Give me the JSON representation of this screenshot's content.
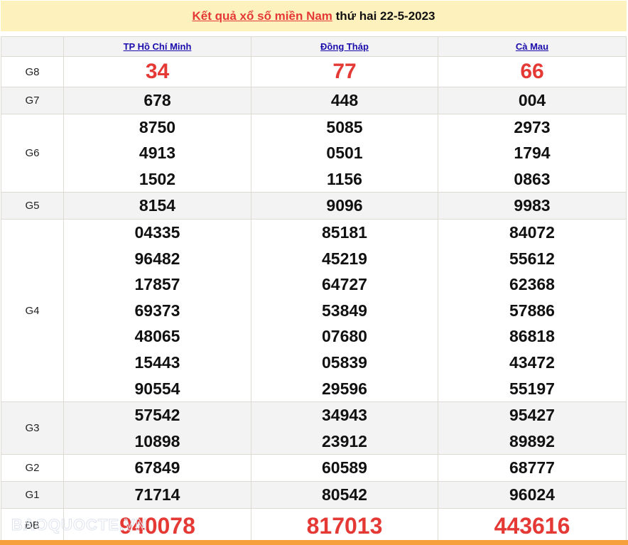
{
  "title": {
    "link": "Kết quả xổ số miền Nam",
    "rest": " thứ hai 22-5-2023"
  },
  "provinces": [
    "TP Hồ Chí Minh",
    "Đồng Tháp",
    "Cà Mau"
  ],
  "prizes": [
    {
      "label": "G8",
      "values": [
        [
          "34"
        ],
        [
          "77"
        ],
        [
          "66"
        ]
      ]
    },
    {
      "label": "G7",
      "values": [
        [
          "678"
        ],
        [
          "448"
        ],
        [
          "004"
        ]
      ]
    },
    {
      "label": "G6",
      "values": [
        [
          "8750",
          "4913",
          "1502"
        ],
        [
          "5085",
          "0501",
          "1156"
        ],
        [
          "2973",
          "1794",
          "0863"
        ]
      ]
    },
    {
      "label": "G5",
      "values": [
        [
          "8154"
        ],
        [
          "9096"
        ],
        [
          "9983"
        ]
      ]
    },
    {
      "label": "G4",
      "values": [
        [
          "04335",
          "96482",
          "17857",
          "69373",
          "48065",
          "15443",
          "90554"
        ],
        [
          "85181",
          "45219",
          "64727",
          "53849",
          "07680",
          "05839",
          "29596"
        ],
        [
          "84072",
          "55612",
          "62368",
          "57886",
          "86818",
          "43472",
          "55197"
        ]
      ]
    },
    {
      "label": "G3",
      "values": [
        [
          "57542",
          "10898"
        ],
        [
          "34943",
          "23912"
        ],
        [
          "95427",
          "89892"
        ]
      ]
    },
    {
      "label": "G2",
      "values": [
        [
          "67849"
        ],
        [
          "60589"
        ],
        [
          "68777"
        ]
      ]
    },
    {
      "label": "G1",
      "values": [
        [
          "71714"
        ],
        [
          "80542"
        ],
        [
          "96024"
        ]
      ]
    },
    {
      "label": "ĐB",
      "values": [
        [
          "940078"
        ],
        [
          "817013"
        ],
        [
          "443616"
        ]
      ]
    }
  ],
  "watermark": "BAOQUOCTE.VN",
  "colors": {
    "accent": "#e53935",
    "link": "#1a0dab",
    "header_bg": "#fdf1be",
    "bottom_bar": "#f5a03c"
  }
}
